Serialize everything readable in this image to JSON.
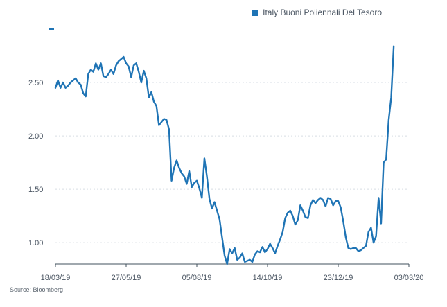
{
  "chart_data": {
    "type": "line",
    "title": "",
    "xlabel": "",
    "ylabel": "",
    "legend_position": "top-right",
    "grid": true,
    "x_tick_labels": [
      "18/03/19",
      "27/05/19",
      "05/08/19",
      "14/10/19",
      "23/12/19",
      "03/03/20"
    ],
    "y_tick_labels": [
      "1.00",
      "1.50",
      "2.00",
      "2.50"
    ],
    "ylim": [
      0.8,
      3.0
    ],
    "series": [
      {
        "name": "Italy Buoni Poliennali Del Tesoro",
        "color": "#1f74b5",
        "points": [
          [
            0,
            2.45
          ],
          [
            1,
            2.52
          ],
          [
            2,
            2.45
          ],
          [
            3,
            2.5
          ],
          [
            4,
            2.45
          ],
          [
            5,
            2.47
          ],
          [
            6,
            2.5
          ],
          [
            7,
            2.52
          ],
          [
            8,
            2.54
          ],
          [
            9,
            2.5
          ],
          [
            10,
            2.48
          ],
          [
            11,
            2.4
          ],
          [
            12,
            2.37
          ],
          [
            13,
            2.58
          ],
          [
            14,
            2.62
          ],
          [
            15,
            2.6
          ],
          [
            16,
            2.68
          ],
          [
            17,
            2.62
          ],
          [
            18,
            2.68
          ],
          [
            19,
            2.56
          ],
          [
            20,
            2.55
          ],
          [
            21,
            2.58
          ],
          [
            22,
            2.62
          ],
          [
            23,
            2.58
          ],
          [
            24,
            2.66
          ],
          [
            25,
            2.7
          ],
          [
            26,
            2.72
          ],
          [
            27,
            2.74
          ],
          [
            28,
            2.68
          ],
          [
            29,
            2.65
          ],
          [
            30,
            2.55
          ],
          [
            31,
            2.66
          ],
          [
            32,
            2.68
          ],
          [
            33,
            2.6
          ],
          [
            34,
            2.5
          ],
          [
            35,
            2.61
          ],
          [
            36,
            2.54
          ],
          [
            37,
            2.36
          ],
          [
            38,
            2.41
          ],
          [
            39,
            2.32
          ],
          [
            40,
            2.28
          ],
          [
            41,
            2.1
          ],
          [
            42,
            2.13
          ],
          [
            43,
            2.16
          ],
          [
            44,
            2.15
          ],
          [
            45,
            2.06
          ],
          [
            46,
            1.58
          ],
          [
            47,
            1.7
          ],
          [
            48,
            1.77
          ],
          [
            49,
            1.7
          ],
          [
            50,
            1.65
          ],
          [
            51,
            1.62
          ],
          [
            52,
            1.55
          ],
          [
            53,
            1.67
          ],
          [
            54,
            1.52
          ],
          [
            55,
            1.56
          ],
          [
            56,
            1.58
          ],
          [
            57,
            1.51
          ],
          [
            58,
            1.42
          ],
          [
            59,
            1.79
          ],
          [
            60,
            1.62
          ],
          [
            61,
            1.41
          ],
          [
            62,
            1.32
          ],
          [
            63,
            1.38
          ],
          [
            64,
            1.3
          ],
          [
            65,
            1.22
          ],
          [
            66,
            1.05
          ],
          [
            67,
            0.88
          ],
          [
            68,
            0.8
          ],
          [
            69,
            0.94
          ],
          [
            70,
            0.9
          ],
          [
            71,
            0.95
          ],
          [
            72,
            0.84
          ],
          [
            73,
            0.86
          ],
          [
            74,
            0.9
          ],
          [
            75,
            0.82
          ],
          [
            76,
            0.83
          ],
          [
            77,
            0.84
          ],
          [
            78,
            0.82
          ],
          [
            79,
            0.89
          ],
          [
            80,
            0.92
          ],
          [
            81,
            0.91
          ],
          [
            82,
            0.96
          ],
          [
            83,
            0.91
          ],
          [
            84,
            0.94
          ],
          [
            85,
            0.99
          ],
          [
            86,
            0.95
          ],
          [
            87,
            0.9
          ],
          [
            88,
            0.97
          ],
          [
            89,
            1.03
          ],
          [
            90,
            1.1
          ],
          [
            91,
            1.23
          ],
          [
            92,
            1.28
          ],
          [
            93,
            1.3
          ],
          [
            94,
            1.25
          ],
          [
            95,
            1.17
          ],
          [
            96,
            1.21
          ],
          [
            97,
            1.35
          ],
          [
            98,
            1.3
          ],
          [
            99,
            1.24
          ],
          [
            100,
            1.23
          ],
          [
            101,
            1.35
          ],
          [
            102,
            1.4
          ],
          [
            103,
            1.37
          ],
          [
            104,
            1.4
          ],
          [
            105,
            1.42
          ],
          [
            106,
            1.4
          ],
          [
            107,
            1.34
          ],
          [
            108,
            1.42
          ],
          [
            109,
            1.41
          ],
          [
            110,
            1.35
          ],
          [
            111,
            1.39
          ],
          [
            112,
            1.39
          ],
          [
            113,
            1.33
          ],
          [
            114,
            1.2
          ],
          [
            115,
            1.05
          ],
          [
            116,
            0.95
          ],
          [
            117,
            0.94
          ],
          [
            118,
            0.95
          ],
          [
            119,
            0.95
          ],
          [
            120,
            0.92
          ],
          [
            121,
            0.93
          ],
          [
            122,
            0.95
          ],
          [
            123,
            0.97
          ],
          [
            124,
            1.1
          ],
          [
            125,
            1.14
          ],
          [
            126,
            1.0
          ],
          [
            127,
            1.06
          ],
          [
            128,
            1.42
          ],
          [
            129,
            1.18
          ],
          [
            130,
            1.75
          ],
          [
            131,
            1.78
          ],
          [
            132,
            2.15
          ],
          [
            133,
            2.36
          ],
          [
            134,
            2.84
          ]
        ]
      }
    ],
    "x_tick_indices": [
      0,
      28,
      56,
      84,
      112,
      140
    ]
  },
  "source_text": "Source: Bloomberg"
}
